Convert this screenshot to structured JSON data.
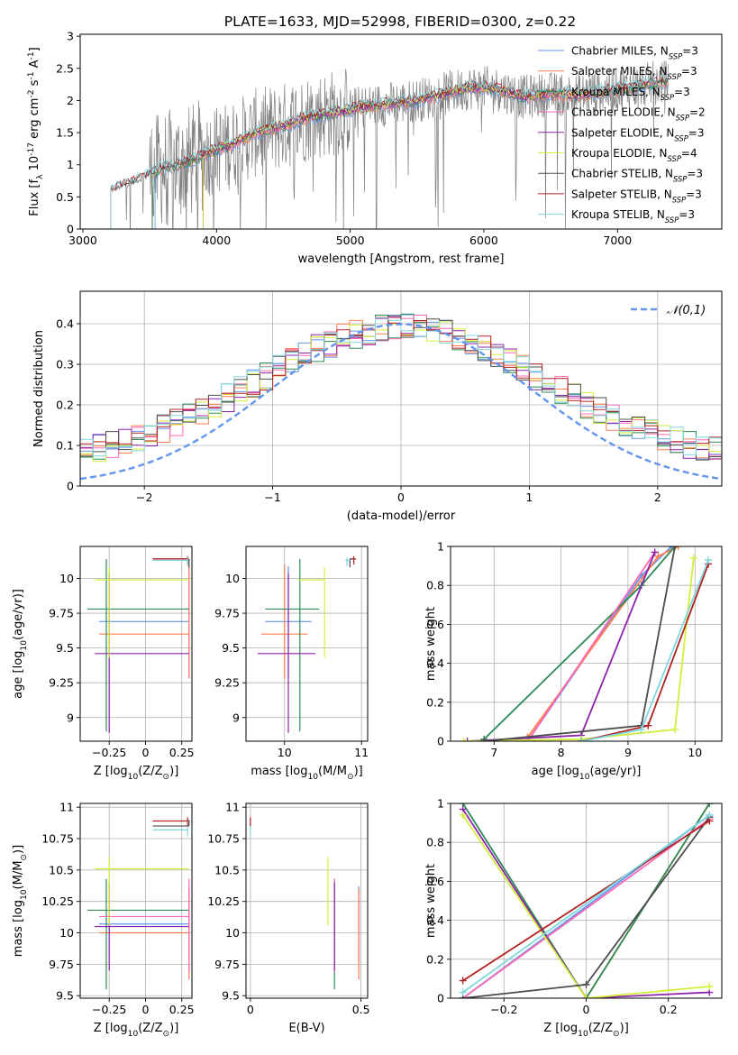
{
  "title": "PLATE=1633, MJD=52998, FIBERID=0300, z=0.22",
  "models": [
    {
      "name": "Chabrier MILES, N$_{SSP}$=3",
      "label": "Chabrier MILES, N",
      "sub": "SSP",
      "n": "=3",
      "color": "#6495ed"
    },
    {
      "name": "Salpeter MILES, N$_{SSP}$=3",
      "label": "Salpeter MILES, N",
      "sub": "SSP",
      "n": "=3",
      "color": "#ff7f50"
    },
    {
      "name": "Kroupa MILES, N$_{SSP}$=3",
      "label": "Kroupa MILES, N",
      "sub": "SSP",
      "n": "=3",
      "color": "#2e8b57"
    },
    {
      "name": "Chabrier ELODIE, N$_{SSP}$=2",
      "label": "Chabrier ELODIE, N",
      "sub": "SSP",
      "n": "=2",
      "color": "#ff69b4"
    },
    {
      "name": "Salpeter ELODIE, N$_{SSP}$=3",
      "label": "Salpeter ELODIE, N",
      "sub": "SSP",
      "n": "=3",
      "color": "#8e24aa"
    },
    {
      "name": "Kroupa ELODIE, N$_{SSP}$=4",
      "label": "Kroupa ELODIE, N",
      "sub": "SSP",
      "n": "=4",
      "color": "#d4ee3c"
    },
    {
      "name": "Chabrier STELIB, N$_{SSP}$=3",
      "label": "Chabrier STELIB, N",
      "sub": "SSP",
      "n": "=3",
      "color": "#4d4d4d"
    },
    {
      "name": "Salpeter STELIB, N$_{SSP}$=3",
      "label": "Salpeter STELIB, N",
      "sub": "SSP",
      "n": "=3",
      "color": "#b22222"
    },
    {
      "name": "Kroupa STELIB, N$_{SSP}$=3",
      "label": "Kroupa STELIB, N",
      "sub": "SSP",
      "n": "=3",
      "color": "#7fd8de"
    }
  ],
  "chart_data": [
    {
      "id": "spectrum",
      "type": "line",
      "xlabel": "wavelength [Angstrom, rest frame]",
      "ylabel": "Flux [f$_\\lambda$ 10$^{-17}$ erg cm$^{-2}$ s$^{-1}$ A$^{-1}$]",
      "xlim": [
        2980,
        7780
      ],
      "ylim": [
        0,
        3.03
      ],
      "xticks": [
        3000,
        4000,
        5000,
        6000,
        7000
      ],
      "yticks": [
        0.0,
        0.5,
        1.0,
        1.5,
        2.0,
        2.5,
        3.0
      ],
      "data_color": "#808080",
      "data_range": [
        3210,
        7380
      ],
      "model_ranges": [
        [
          3540,
          7380
        ],
        [
          3520,
          7380
        ],
        [
          3520,
          7380
        ],
        [
          3900,
          6800
        ],
        [
          3900,
          6800
        ],
        [
          3900,
          6800
        ],
        [
          3210,
          7380
        ],
        [
          3210,
          7380
        ],
        [
          3210,
          7380
        ]
      ],
      "continuum": {
        "x": [
          3210,
          3400,
          3600,
          3800,
          3950,
          4100,
          4300,
          4500,
          4700,
          4900,
          5100,
          5300,
          5500,
          5700,
          5900,
          6100,
          6300,
          6500,
          6700,
          6900,
          7100,
          7300
        ],
        "y": [
          0.6,
          0.75,
          0.95,
          1.05,
          1.2,
          1.3,
          1.5,
          1.6,
          1.75,
          1.82,
          1.9,
          1.95,
          2.0,
          2.1,
          2.2,
          2.18,
          2.05,
          2.1,
          2.08,
          2.15,
          2.2,
          2.28
        ]
      }
    },
    {
      "id": "residuals",
      "type": "histogram",
      "xlabel": "(data-model)/error",
      "ylabel": "Normed distribution",
      "xlim": [
        -2.5,
        2.5
      ],
      "ylim": [
        0,
        0.48
      ],
      "xticks": [
        -2,
        -1,
        0,
        1,
        2
      ],
      "yticks": [
        0.0,
        0.1,
        0.2,
        0.3,
        0.4
      ],
      "bin_width": 0.1,
      "normal_curve": {
        "label": "$\\mathcal{N}(0,1)$",
        "mu": 0,
        "sigma": 1,
        "color": "#6495ed"
      }
    },
    {
      "id": "age-vs-Z",
      "type": "errorbar",
      "xlabel": "Z [log$_{10}$(Z/Z$_\\odot$)]",
      "ylabel": "age  [log$_{10}$(age/yr)]",
      "xlim": [
        -0.45,
        0.32
      ],
      "ylim": [
        8.83,
        10.23
      ],
      "xticks": [
        -0.25,
        0.0,
        0.25
      ],
      "yticks": [
        9.0,
        9.25,
        9.5,
        9.75,
        10.0
      ],
      "points": [
        {
          "x": 0.3,
          "y": 9.69,
          "xerr": [
            0.62,
            0.0
          ],
          "yerr": [
            0.4,
            0.4
          ]
        },
        {
          "x": 0.3,
          "y": 9.6,
          "xerr": [
            0.62,
            0.0
          ],
          "yerr": [
            0.32,
            0.5
          ]
        },
        {
          "x": -0.27,
          "y": 9.78,
          "xerr": [
            0.13,
            0.57
          ],
          "yerr": [
            0.88,
            0.36
          ]
        },
        {
          "x": 0.3,
          "y": 10.14,
          "xerr": [
            0.25,
            0.0
          ],
          "yerr": [
            0.03,
            0.0
          ]
        },
        {
          "x": -0.25,
          "y": 9.46,
          "xerr": [
            0.1,
            0.55
          ],
          "yerr": [
            0.57,
            0.58
          ]
        },
        {
          "x": -0.25,
          "y": 9.99,
          "xerr": [
            0.1,
            0.55
          ],
          "yerr": [
            0.56,
            0.09
          ]
        },
        {
          "x": 0.3,
          "y": 10.14,
          "xerr": [
            0.25,
            0.0
          ],
          "yerr": [
            0.06,
            0.0
          ]
        },
        {
          "x": 0.29,
          "y": 10.14,
          "xerr": [
            0.24,
            0.0
          ],
          "yerr": [
            0.04,
            0.02
          ]
        },
        {
          "x": 0.29,
          "y": 10.13,
          "xerr": [
            0.24,
            0.0
          ],
          "yerr": [
            0.04,
            0.02
          ]
        }
      ]
    },
    {
      "id": "age-vs-mass",
      "type": "errorbar",
      "xlabel": "mass [log$_{10}$(M/M$_\\odot$)]",
      "ylabel": "",
      "xlim": [
        9.5,
        11.08
      ],
      "ylim": [
        8.83,
        10.23
      ],
      "xticks": [
        10,
        11
      ],
      "yticks": [
        9.0,
        9.25,
        9.5,
        9.75,
        10.0
      ],
      "points": [
        {
          "x": 10.05,
          "y": 9.69,
          "xerr": [
            0.3,
            0.3
          ],
          "yerr": [
            0.4,
            0.4
          ]
        },
        {
          "x": 10.0,
          "y": 9.6,
          "xerr": [
            0.3,
            0.3
          ],
          "yerr": [
            0.32,
            0.5
          ]
        },
        {
          "x": 10.2,
          "y": 9.78,
          "xerr": [
            0.45,
            0.25
          ],
          "yerr": [
            0.88,
            0.36
          ]
        },
        {
          "x": 10.85,
          "y": 10.14,
          "xerr": [
            0.0,
            0.05
          ],
          "yerr": [
            0.03,
            0.0
          ]
        },
        {
          "x": 10.05,
          "y": 9.46,
          "xerr": [
            0.4,
            0.35
          ],
          "yerr": [
            0.57,
            0.58
          ]
        },
        {
          "x": 10.52,
          "y": 9.99,
          "xerr": [
            0.35,
            0.0
          ],
          "yerr": [
            0.56,
            0.09
          ]
        },
        {
          "x": 10.85,
          "y": 10.14,
          "xerr": [
            0.0,
            0.05
          ],
          "yerr": [
            0.06,
            0.0
          ]
        },
        {
          "x": 10.9,
          "y": 10.14,
          "xerr": [
            0.03,
            0.03
          ],
          "yerr": [
            0.04,
            0.02
          ]
        },
        {
          "x": 10.81,
          "y": 10.13,
          "xerr": [
            0.02,
            0.04
          ],
          "yerr": [
            0.04,
            0.02
          ]
        }
      ]
    },
    {
      "id": "weight-vs-age",
      "type": "line",
      "xlabel": "age  [log$_{10}$(age/yr)]",
      "ylabel": "mass weight",
      "xlim": [
        6.35,
        10.4
      ],
      "ylim": [
        0,
        1.0
      ],
      "xticks": [
        7,
        8,
        9,
        10
      ],
      "yticks": [
        0.0,
        0.2,
        0.4,
        0.6,
        0.8,
        1.0
      ],
      "series": [
        {
          "x": [
            7.5,
            9.2,
            9.65
          ],
          "y": [
            0.0,
            0.85,
            1.0
          ]
        },
        {
          "x": [
            7.5,
            9.45,
            9.75
          ],
          "y": [
            0.02,
            0.95,
            1.0
          ]
        },
        {
          "x": [
            6.85,
            9.2,
            9.7
          ],
          "y": [
            0.01,
            0.8,
            1.0
          ]
        },
        {
          "x": [
            7.5,
            9.4
          ],
          "y": [
            0.0,
            0.97
          ]
        },
        {
          "x": [
            6.6,
            8.3,
            9.4
          ],
          "y": [
            0.0,
            0.03,
            0.97
          ]
        },
        {
          "x": [
            6.55,
            8.3,
            9.7,
            9.98
          ],
          "y": [
            0.0,
            0.01,
            0.06,
            0.94
          ]
        },
        {
          "x": [
            6.85,
            9.2,
            9.7
          ],
          "y": [
            0.0,
            0.08,
            1.0
          ]
        },
        {
          "x": [
            8.3,
            9.3,
            10.2
          ],
          "y": [
            0.0,
            0.08,
            0.91
          ]
        },
        {
          "x": [
            8.3,
            9.2,
            10.2
          ],
          "y": [
            0.0,
            0.06,
            0.93
          ]
        }
      ]
    },
    {
      "id": "mass-vs-Z",
      "type": "errorbar",
      "xlabel": "Z [log$_{10}$(Z/Z$_\\odot$)]",
      "ylabel": "mass [log$_{10}$(M/M$_\\odot$)]",
      "xlim": [
        -0.45,
        0.32
      ],
      "ylim": [
        9.48,
        11.03
      ],
      "xticks": [
        -0.25,
        0.0,
        0.25
      ],
      "yticks": [
        9.5,
        9.75,
        10.0,
        10.25,
        10.5,
        10.75,
        11.0
      ],
      "points": [
        {
          "x": 0.3,
          "y": 10.07,
          "xerr": [
            0.62,
            0.0
          ],
          "yerr": [
            0.3,
            0.3
          ]
        },
        {
          "x": 0.3,
          "y": 10.0,
          "xerr": [
            0.62,
            0.0
          ],
          "yerr": [
            0.37,
            0.35
          ]
        },
        {
          "x": -0.27,
          "y": 10.18,
          "xerr": [
            0.13,
            0.57
          ],
          "yerr": [
            0.63,
            0.25
          ]
        },
        {
          "x": 0.3,
          "y": 10.13,
          "xerr": [
            0.62,
            0.0
          ],
          "yerr": [
            0.44,
            0.3
          ]
        },
        {
          "x": -0.25,
          "y": 10.05,
          "xerr": [
            0.1,
            0.55
          ],
          "yerr": [
            0.35,
            0.35
          ]
        },
        {
          "x": -0.25,
          "y": 10.51,
          "xerr": [
            0.1,
            0.55
          ],
          "yerr": [
            0.45,
            0.09
          ]
        },
        {
          "x": 0.3,
          "y": 10.85,
          "xerr": [
            0.25,
            0.0
          ],
          "yerr": [
            0.0,
            0.05
          ]
        },
        {
          "x": 0.29,
          "y": 10.89,
          "xerr": [
            0.24,
            0.0
          ],
          "yerr": [
            0.04,
            0.03
          ]
        },
        {
          "x": 0.29,
          "y": 10.82,
          "xerr": [
            0.24,
            0.0
          ],
          "yerr": [
            0.05,
            0.02
          ]
        }
      ]
    },
    {
      "id": "mass-vs-EBV",
      "type": "errorbar",
      "xlabel": "E(B-V)",
      "ylabel": "",
      "xlim": [
        -0.02,
        0.53
      ],
      "ylim": [
        9.48,
        11.03
      ],
      "xticks": [
        0.0,
        0.5
      ],
      "yticks": [
        9.5,
        9.75,
        10.0,
        10.25,
        10.5,
        10.75,
        11.0
      ],
      "points": [
        {
          "x": 0.49,
          "y": 10.07,
          "xerr": [
            0.0,
            0.0
          ],
          "yerr": [
            0.3,
            0.3
          ]
        },
        {
          "x": 0.49,
          "y": 10.0,
          "xerr": [
            0.0,
            0.0
          ],
          "yerr": [
            0.37,
            0.35
          ]
        },
        {
          "x": 0.38,
          "y": 10.18,
          "xerr": [
            0.0,
            0.0
          ],
          "yerr": [
            0.63,
            0.25
          ]
        },
        {
          "x": 0.38,
          "y": 10.13,
          "xerr": [
            0.0,
            0.0
          ],
          "yerr": [
            0.44,
            0.3
          ]
        },
        {
          "x": 0.38,
          "y": 10.05,
          "xerr": [
            0.0,
            0.0
          ],
          "yerr": [
            0.35,
            0.35
          ]
        },
        {
          "x": 0.35,
          "y": 10.51,
          "xerr": [
            0.0,
            0.0
          ],
          "yerr": [
            0.45,
            0.09
          ]
        },
        {
          "x": 0.0,
          "y": 10.85,
          "xerr": [
            0.0,
            0.0
          ],
          "yerr": [
            0.0,
            0.05
          ]
        },
        {
          "x": 0.0,
          "y": 10.89,
          "xerr": [
            0.0,
            0.0
          ],
          "yerr": [
            0.04,
            0.03
          ]
        },
        {
          "x": 0.0,
          "y": 10.82,
          "xerr": [
            0.0,
            0.0
          ],
          "yerr": [
            0.05,
            0.02
          ]
        }
      ]
    },
    {
      "id": "weight-vs-Z",
      "type": "line",
      "xlabel": "Z [log$_{10}$(Z/Z$_\\odot$)]",
      "ylabel": "mass weight",
      "xlim": [
        -0.33,
        0.33
      ],
      "ylim": [
        0,
        1.0
      ],
      "xticks": [
        -0.2,
        0.0,
        0.2
      ],
      "yticks": [
        0.0,
        0.2,
        0.4,
        0.6,
        0.8,
        1.0
      ],
      "series": [
        {
          "x": [
            -0.3,
            0.3
          ],
          "y": [
            0.0,
            0.94
          ]
        },
        {
          "x": [
            0.0,
            0.3
          ],
          "y": [
            0.0,
            1.0
          ]
        },
        {
          "x": [
            -0.3,
            0.0,
            0.3
          ],
          "y": [
            1.0,
            0.0,
            1.0
          ]
        },
        {
          "x": [
            -0.3,
            0.3
          ],
          "y": [
            0.0,
            0.92
          ]
        },
        {
          "x": [
            -0.3,
            0.0,
            0.3
          ],
          "y": [
            0.97,
            0.0,
            0.03
          ]
        },
        {
          "x": [
            -0.3,
            0.0,
            0.3
          ],
          "y": [
            0.94,
            0.0,
            0.06
          ]
        },
        {
          "x": [
            -0.3,
            0.0,
            0.3
          ],
          "y": [
            0.0,
            0.07,
            0.93
          ]
        },
        {
          "x": [
            -0.3,
            0.3
          ],
          "y": [
            0.09,
            0.91
          ]
        },
        {
          "x": [
            -0.3,
            0.3
          ],
          "y": [
            0.03,
            0.94
          ]
        }
      ]
    }
  ]
}
